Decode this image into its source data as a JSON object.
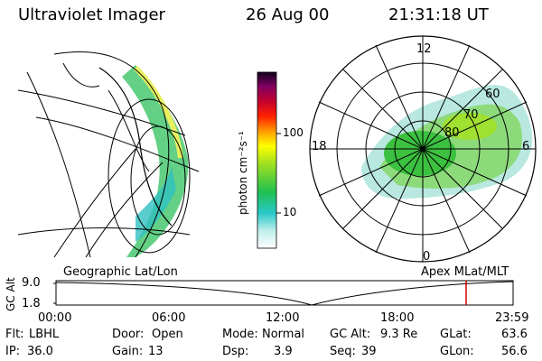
{
  "header": {
    "instrument": "Ultraviolet Imager",
    "date": "26 Aug 00",
    "time": "21:31:18 UT"
  },
  "colorbar": {
    "unit_label": "photon cm⁻²s⁻¹",
    "ticks": [
      "100",
      "10"
    ]
  },
  "polar": {
    "mlt_labels": [
      "12",
      "18",
      "6",
      "0"
    ],
    "mlat_labels": [
      "60",
      "70",
      "80"
    ]
  },
  "captions": {
    "left": "Geographic Lat/Lon",
    "right": "Apex MLat/MLT"
  },
  "altitude_plot": {
    "y_label": "GC Alt",
    "y_ticks": [
      "9.0",
      "1.8"
    ],
    "x_ticks": [
      "00:00",
      "06:00",
      "12:00",
      "18:00",
      "23:59"
    ],
    "marker_time": "21:31"
  },
  "footer": {
    "row1": [
      {
        "label": "Flt:",
        "value": "LBHL"
      },
      {
        "label": "Door:",
        "value": "Open"
      },
      {
        "label": "Mode:",
        "value": "Normal"
      },
      {
        "label": "GC Alt:",
        "value": "9.3 Re"
      },
      {
        "label": "GLat:",
        "value": "63.6"
      }
    ],
    "row2": [
      {
        "label": "IP:",
        "value": "36.0"
      },
      {
        "label": "Gain:",
        "value": "13"
      },
      {
        "label": "Dsp:",
        "value": "3.9"
      },
      {
        "label": "Seq:",
        "value": "39"
      },
      {
        "label": "GLon:",
        "value": "56.6"
      }
    ]
  },
  "colors": {
    "marker": "#d00000"
  }
}
